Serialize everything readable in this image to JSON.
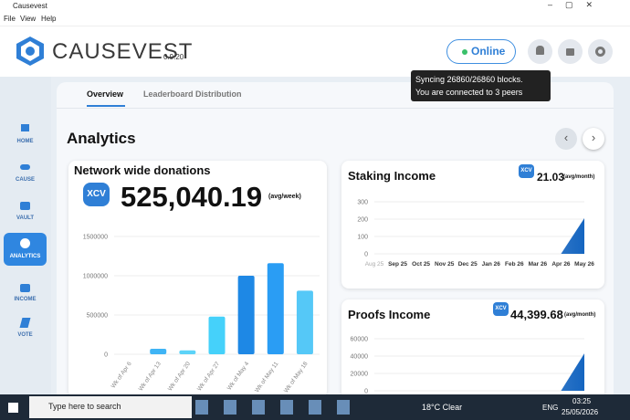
{
  "window": {
    "title": "Causevest",
    "menu": [
      "File",
      "View",
      "Help"
    ]
  },
  "header": {
    "brand": "CAUSEVEST",
    "version": "0.9.20",
    "status": "Online",
    "tooltip": [
      "Syncing 26860/26860 blocks.",
      "You are connected to 3 peers"
    ]
  },
  "nav": [
    "HOME",
    "CAUSE",
    "VAULT",
    "ANALYTICS",
    "INCOME",
    "VOTE"
  ],
  "tabs": [
    "Overview",
    "Leaderboard Distribution"
  ],
  "page_title": "Analytics",
  "chart_data": [
    {
      "type": "bar",
      "title": "Network wide donations",
      "annotations": {
        "badge": "XCV",
        "headline": "525,040.19",
        "unit": "(avg/week)"
      },
      "categories": [
        "Wk of Apr 6",
        "Wk of Apr 13",
        "Wk of Apr 20",
        "Wk of Apr 27",
        "Wk of May 4",
        "Wk of May 11",
        "Wk of May 18"
      ],
      "values": [
        0,
        70000,
        50000,
        480000,
        1000000,
        1160000,
        810000
      ],
      "colors": [
        "#4fc3f7",
        "#3fb4f5",
        "#5cd3f8",
        "#45d1fa",
        "#1e88e5",
        "#2a9df4",
        "#55c8f7"
      ],
      "ylim": [
        0,
        1500000
      ],
      "yticks": [
        0,
        500000,
        1000000,
        1500000
      ],
      "grid": true
    },
    {
      "type": "area",
      "title": "Staking Income",
      "annotations": {
        "badge": "XCV",
        "headline": "21.03",
        "unit": "(avg/month)"
      },
      "categories": [
        "Aug 25",
        "Sep 25",
        "Oct 25",
        "Nov 25",
        "Dec 25",
        "Jan 26",
        "Feb 26",
        "Mar 26",
        "Apr 26",
        "May 26"
      ],
      "values": [
        0,
        0,
        0,
        0,
        0,
        0,
        0,
        0,
        0,
        205
      ],
      "color": "#1565c0",
      "ylim": [
        0,
        300
      ],
      "yticks": [
        0,
        100,
        200,
        300
      ],
      "grid": true
    },
    {
      "type": "area",
      "title": "Proofs Income",
      "annotations": {
        "badge": "XCV",
        "headline": "44,399.68",
        "unit": "(avg/month)"
      },
      "categories": [
        null,
        null,
        null,
        null,
        null,
        null,
        null,
        null,
        null,
        null
      ],
      "values": [
        0,
        0,
        0,
        0,
        0,
        0,
        0,
        0,
        0,
        43000
      ],
      "color": "#1565c0",
      "ylim": [
        0,
        60000
      ],
      "yticks": [
        0,
        20000,
        40000,
        60000
      ],
      "grid": true
    }
  ],
  "taskbar": {
    "search": "Type here to search",
    "weather": "18°C Clear",
    "lang": "ENG",
    "time": "03:25",
    "date": "25/05/2026"
  }
}
